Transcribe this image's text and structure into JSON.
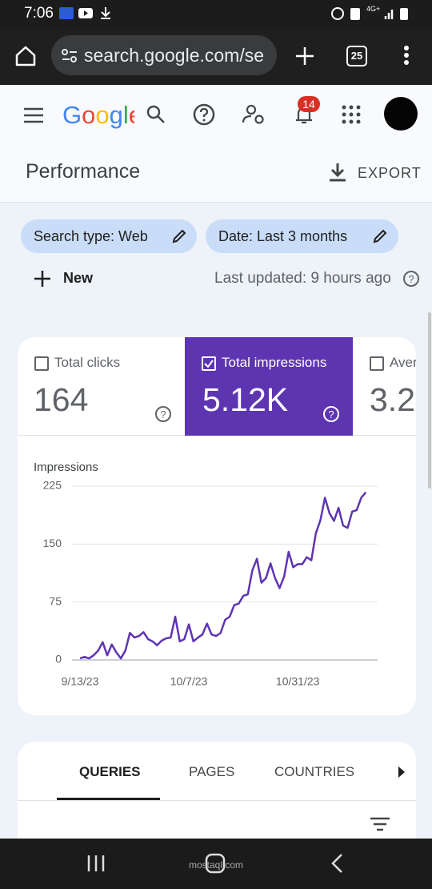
{
  "status_bar": {
    "time": "7:06",
    "network": "4G+"
  },
  "browser": {
    "url": "search.google.com/se",
    "tab_count": "25"
  },
  "app_bar": {
    "logo": "Google",
    "notification_count": "14"
  },
  "header": {
    "title": "Performance",
    "export": "EXPORT"
  },
  "filters": {
    "search_type": "Search type: Web",
    "date": "Date: Last 3 months",
    "new": "New",
    "last_updated": "Last updated: 9 hours ago"
  },
  "metrics": [
    {
      "label": "Total clicks",
      "value": "164"
    },
    {
      "label": "Total impressions",
      "value": "5.12K"
    },
    {
      "label": "Aver",
      "value": "3.2"
    }
  ],
  "chart_data": {
    "type": "line",
    "y_label": "Impressions",
    "categories": [
      "9/13/23",
      null,
      null,
      null,
      null,
      null,
      null,
      null,
      null,
      null,
      null,
      null,
      null,
      null,
      null,
      null,
      null,
      null,
      null,
      null,
      null,
      null,
      null,
      null,
      "10/7/23",
      null,
      null,
      null,
      null,
      null,
      null,
      null,
      null,
      null,
      null,
      null,
      null,
      null,
      null,
      null,
      null,
      null,
      null,
      null,
      null,
      null,
      null,
      null,
      "10/31/23",
      null,
      null,
      null,
      null,
      null,
      null,
      null,
      null,
      null,
      null,
      null,
      null,
      null,
      null,
      null
    ],
    "series": [
      {
        "name": "Impressions",
        "color": "#5e35b1",
        "values": [
          2,
          4,
          2,
          6,
          12,
          23,
          6,
          20,
          10,
          2,
          12,
          35,
          29,
          31,
          36,
          27,
          24,
          19,
          25,
          28,
          29,
          56,
          24,
          27,
          46,
          24,
          29,
          33,
          47,
          33,
          31,
          35,
          52,
          56,
          71,
          73,
          83,
          85,
          116,
          131,
          100,
          106,
          125,
          106,
          93,
          108,
          140,
          120,
          124,
          124,
          133,
          129,
          164,
          181,
          210,
          190,
          180,
          197,
          174,
          171,
          192,
          194,
          210,
          217
        ]
      }
    ],
    "ylim": [
      0,
      225
    ],
    "yticks": [
      0,
      75,
      150,
      225
    ],
    "grid": true
  },
  "tabs": [
    "QUERIES",
    "PAGES",
    "COUNTRIES"
  ],
  "watermark": "mostaql.com"
}
